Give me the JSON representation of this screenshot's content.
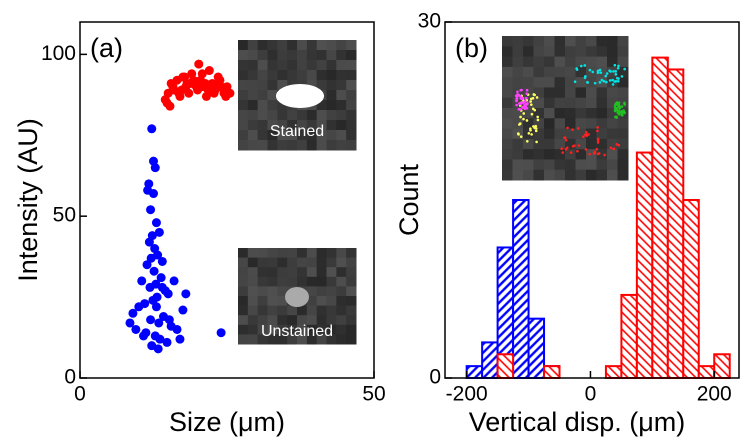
{
  "chart_data": [
    {
      "type": "scatter",
      "panel_label": "(a)",
      "x_label": "Size (μm)",
      "y_label": "Intensity (AU)",
      "xlim": [
        0,
        50
      ],
      "ylim": [
        0,
        110
      ],
      "xticks": [
        0,
        50
      ],
      "yticks": [
        0,
        50,
        100
      ],
      "inset_labels": [
        "Stained",
        "Unstained"
      ],
      "series": [
        {
          "color": "#ff0000",
          "x": [
            14.5,
            15,
            15.5,
            16,
            16.5,
            17,
            17.5,
            18,
            18.5,
            19,
            19.5,
            20,
            20.5,
            21,
            21.5,
            22,
            22.5,
            23,
            23.5,
            24,
            24.5,
            25,
            14.8,
            15.8,
            16.8,
            17.8,
            18.8,
            19.8,
            20.8,
            21.8,
            22.8,
            23.8,
            24.8,
            15.3,
            17.3,
            19.3,
            21.3,
            23.3,
            25.5,
            18.2,
            20.2,
            22.2
          ],
          "y": [
            86,
            88,
            91,
            89,
            92,
            87,
            93,
            90,
            88,
            94,
            91,
            89,
            92,
            90,
            87,
            95,
            91,
            89,
            93,
            90,
            88,
            90,
            85,
            90,
            88,
            93,
            91,
            90,
            94,
            89,
            88,
            92,
            87,
            84,
            89,
            92,
            91,
            90,
            88,
            91,
            97,
            89
          ]
        },
        {
          "color": "#0000ff",
          "x": [
            12.2,
            12.5,
            12.8,
            11.5,
            12,
            13,
            13.5,
            12.3,
            11.8,
            12.7,
            13.2,
            12.1,
            11.4,
            14,
            12.6,
            13.8,
            10.5,
            12.9,
            11.9,
            14.5,
            15,
            13.1,
            12.4,
            16,
            11,
            10,
            9,
            8.5,
            17.5,
            18,
            14.2,
            12,
            13.4,
            15.5,
            16.5,
            11.2,
            12.8,
            13.6,
            10.8,
            9.5,
            17,
            14.8,
            12.2,
            13.3,
            24,
            12.5,
            11.7,
            14,
            15.2,
            13
          ],
          "y": [
            77,
            67,
            65,
            58,
            52,
            48,
            45,
            44,
            42,
            40,
            38,
            37,
            35,
            36,
            33,
            31,
            30,
            29,
            28,
            27,
            26,
            25,
            24,
            30,
            23,
            22,
            20,
            17,
            21,
            26,
            19,
            18,
            17,
            16,
            15,
            14,
            13,
            12,
            13,
            15,
            12,
            11,
            10,
            9,
            14,
            57,
            60,
            28,
            18,
            22
          ]
        }
      ]
    },
    {
      "type": "histogram",
      "panel_label": "(b)",
      "x_label": "Vertical disp. (μm)",
      "y_label": "Count",
      "xlim": [
        -235,
        240
      ],
      "ylim": [
        0,
        30
      ],
      "xticks": [
        -200,
        0,
        200
      ],
      "yticks": [
        0,
        30
      ],
      "bins": [
        -200,
        -175,
        -150,
        -125,
        -100,
        -75,
        -50,
        -25,
        0,
        25,
        50,
        75,
        100,
        125,
        150,
        175,
        200,
        225
      ],
      "series": [
        {
          "color": "#0000ff",
          "values": [
            1,
            3,
            11,
            15,
            5,
            1,
            0,
            0,
            0,
            0,
            0,
            0,
            0,
            0,
            0,
            0,
            0
          ]
        },
        {
          "color": "#ff0000",
          "values": [
            0,
            0,
            2,
            0,
            0,
            1,
            0,
            0,
            0,
            1,
            7,
            19,
            27,
            26,
            15,
            1,
            2
          ]
        }
      ]
    }
  ]
}
